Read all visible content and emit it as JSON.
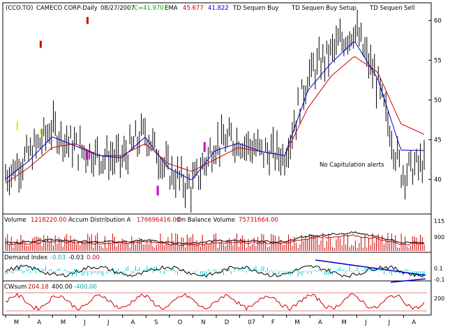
{
  "header": {
    "symbol": "(CCO.TO)",
    "name": "CAMECO CORP-Daily",
    "date": "08/27/2007",
    "close_label": "C=41.970",
    "ema_label": "EMA",
    "ema1": "45.677",
    "ema2": "41.822",
    "ind1": "TD Sequen Buy",
    "ind2": "TD Sequen Buy Setup",
    "ind3": "TD Sequen Sell"
  },
  "annotation": "No Capitulation alerts",
  "colors": {
    "background": "#ffffff",
    "frame": "#000000",
    "price_bars": "#000000",
    "ema_fast": "#0000cc",
    "ema_slow": "#cc0000",
    "volume_bars": "#cc0000",
    "accum_dist": "#cc0000",
    "obv": "#000000",
    "demand_fill": "#00cccc",
    "demand_line": "#000000",
    "trendline": "#0000cc",
    "cwsum": "#cc0000",
    "td_buy": "#cc00cc",
    "td_setup": "#0000cc",
    "td_sell": "#cc0000",
    "highlight_yellow": "#e6e600",
    "axis_text": "#000000"
  },
  "panels": {
    "volume": {
      "label": "Volume",
      "value": "1218220.00",
      "ad_label": "Accum Distribution A",
      "ad_value": "176696416.00",
      "obv_label": "On Balance Volume",
      "obv_value": "75731664.00",
      "axis_ticks": [
        "115",
        "900"
      ]
    },
    "demand": {
      "label": "Demand Index",
      "v1": "-0.03",
      "v2": "-0.03",
      "v3": "0.00",
      "axis_ticks": [
        "0.1",
        "-0.1"
      ]
    },
    "cwsum": {
      "label": "CWsum",
      "v1": "204.18",
      "v2": "400.00",
      "v3": "-400.00",
      "axis_ticks": [
        "200"
      ]
    }
  },
  "chart_data": {
    "type": "line",
    "title": "(CCO.TO) CAMECO CORP-Daily 08/27/2007",
    "x_ticks": [
      "M",
      "A",
      "M",
      "J",
      "J",
      "A",
      "S",
      "O",
      "N",
      "D",
      "07",
      "F",
      "M",
      "A",
      "M",
      "J",
      "J",
      "A"
    ],
    "y_ticks": [
      40,
      45,
      50,
      55,
      60
    ],
    "ylim": [
      36,
      61
    ],
    "series": [
      {
        "name": "Price",
        "x": [
          "M",
          "A",
          "M",
          "J",
          "J",
          "A",
          "S",
          "O",
          "N",
          "D",
          "07",
          "F",
          "M",
          "A",
          "M",
          "J",
          "J",
          "A",
          "A"
        ],
        "values": [
          40.5,
          43.0,
          46.5,
          44.0,
          43.0,
          42.5,
          46.0,
          41.0,
          39.0,
          44.5,
          45.0,
          43.5,
          43.0,
          53.0,
          56.0,
          59.0,
          52.0,
          41.0,
          41.97
        ]
      },
      {
        "name": "EMA",
        "x": [
          "M",
          "A",
          "M",
          "J",
          "J",
          "A",
          "S",
          "O",
          "N",
          "D",
          "07",
          "F",
          "M",
          "A",
          "M",
          "J",
          "J",
          "A",
          "A"
        ],
        "values": [
          39.5,
          41.5,
          44.0,
          44.5,
          43.0,
          43.0,
          44.5,
          42.0,
          41.0,
          42.5,
          44.0,
          43.5,
          43.0,
          49.0,
          53.0,
          55.5,
          53.5,
          47.0,
          45.677
        ]
      }
    ],
    "markers": {
      "td_buy": [
        {
          "x": "S",
          "y": 38.5
        },
        {
          "x": "N",
          "y": 44.0
        },
        {
          "x": "J",
          "y": 43.0
        }
      ],
      "td_sell": [
        {
          "x": "A",
          "y": 57.0
        },
        {
          "x": "J",
          "y": 60.0
        }
      ]
    },
    "yellow_markers": [
      {
        "x": "A",
        "y": 46.0
      },
      {
        "x": "M",
        "y": 46.5
      },
      {
        "x": "M",
        "y": 47.0
      }
    ],
    "grid": false,
    "legend": "top-left"
  }
}
